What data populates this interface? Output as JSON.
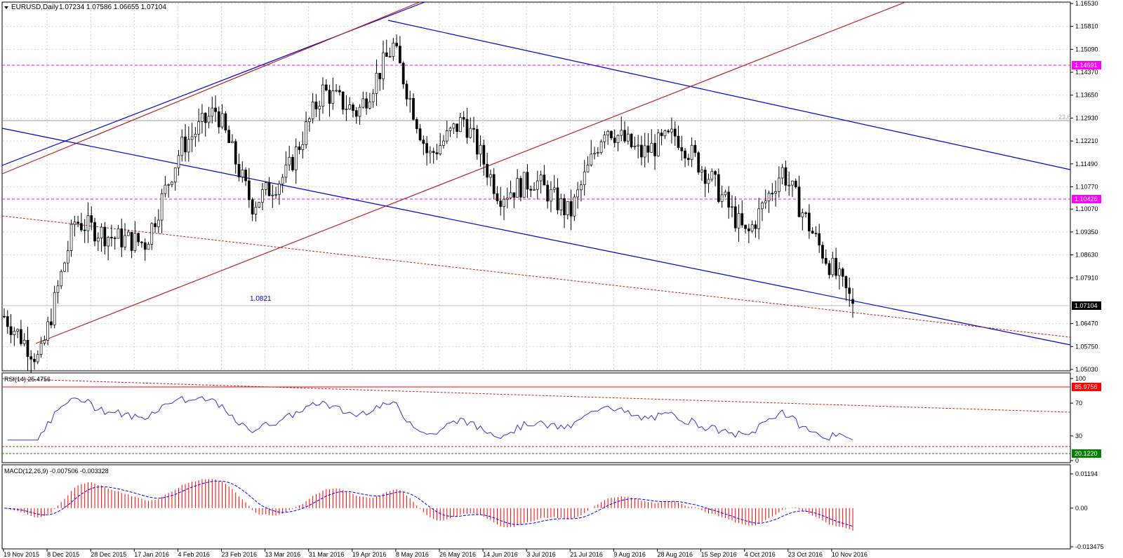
{
  "header": {
    "symbol_label": "EURUSD,Daily",
    "ohlc": "1.07234 1.07586 1.06655 1.07104"
  },
  "main": {
    "price_ticks": [
      "1.16530",
      "1.15810",
      "1.15090",
      "1.14370",
      "1.13650",
      "1.12930",
      "1.12210",
      "1.11490",
      "1.10770",
      "1.10070",
      "1.09350",
      "1.08630",
      "1.07910",
      "1.06470",
      "1.05750",
      "1.05030"
    ],
    "current_price": "1.07104",
    "level_labels": [
      "1.14691",
      "1.10426"
    ],
    "annotation_low": "1.0821",
    "fib_label": "23.6"
  },
  "rsi": {
    "label": "RSI(14) 25.4756",
    "ticks": [
      "100",
      "70",
      "30",
      "0"
    ],
    "upper_level": "85.9756",
    "lower_level": "20.1220"
  },
  "macd": {
    "label": "MACD(12,26,9) -0.007506 -0.003328",
    "ticks": [
      "0.01194",
      "0.00",
      "-0.013475"
    ]
  },
  "date_axis": [
    "19 Nov 2015",
    "8 Dec 2015",
    "28 Dec 2015",
    "17 Jan 2016",
    "4 Feb 2016",
    "23 Feb 2016",
    "13 Mar 2016",
    "31 Mar 2016",
    "19 Apr 2016",
    "8 May 2016",
    "26 May 2016",
    "14 Jun 2016",
    "3 Jul 2016",
    "21 Jul 2016",
    "9 Aug 2016",
    "28 Aug 2016",
    "15 Sep 2016",
    "4 Oct 2016",
    "23 Oct 2016",
    "10 Nov 2016"
  ],
  "colors": {
    "candle": "#000000",
    "channel_blue": "#0000cc",
    "channel_red": "#b22222",
    "level_magenta": "#ff00ff",
    "rsi_line": "#3333cc",
    "macd_hist": "#ff0000",
    "macd_signal": "#0000ff"
  },
  "chart_data": {
    "type": "candlestick",
    "symbol": "EURUSD",
    "timeframe": "Daily",
    "last_bar": {
      "open": 1.07234,
      "high": 1.07586,
      "low": 1.06655,
      "close": 1.07104
    },
    "close_path_approx": [
      {
        "date": "19 Nov 2015",
        "close": 1.067
      },
      {
        "date": "3 Dec 2015",
        "close": 1.053
      },
      {
        "date": "8 Dec 2015",
        "close": 1.097
      },
      {
        "date": "28 Dec 2015",
        "close": 1.092
      },
      {
        "date": "17 Jan 2016",
        "close": 1.09
      },
      {
        "date": "4 Feb 2016",
        "close": 1.12
      },
      {
        "date": "11 Feb 2016",
        "close": 1.132
      },
      {
        "date": "23 Feb 2016",
        "close": 1.102
      },
      {
        "date": "13 Mar 2016",
        "close": 1.112
      },
      {
        "date": "31 Mar 2016",
        "close": 1.138
      },
      {
        "date": "19 Apr 2016",
        "close": 1.131
      },
      {
        "date": "3 May 2016",
        "close": 1.152
      },
      {
        "date": "26 May 2016",
        "close": 1.117
      },
      {
        "date": "14 Jun 2016",
        "close": 1.129
      },
      {
        "date": "24 Jun 2016",
        "close": 1.105
      },
      {
        "date": "3 Jul 2016",
        "close": 1.11
      },
      {
        "date": "21 Jul 2016",
        "close": 1.099
      },
      {
        "date": "9 Aug 2016",
        "close": 1.127
      },
      {
        "date": "28 Aug 2016",
        "close": 1.118
      },
      {
        "date": "15 Sep 2016",
        "close": 1.124
      },
      {
        "date": "4 Oct 2016",
        "close": 1.11
      },
      {
        "date": "23 Oct 2016",
        "close": 1.092
      },
      {
        "date": "4 Nov 2016",
        "close": 1.113
      },
      {
        "date": "10 Nov 2016",
        "close": 1.09
      },
      {
        "date": "15 Nov 2016",
        "close": 1.071
      }
    ],
    "horizontal_levels": [
      1.14691,
      1.10426
    ],
    "price_range": [
      1.0503,
      1.1653
    ]
  }
}
